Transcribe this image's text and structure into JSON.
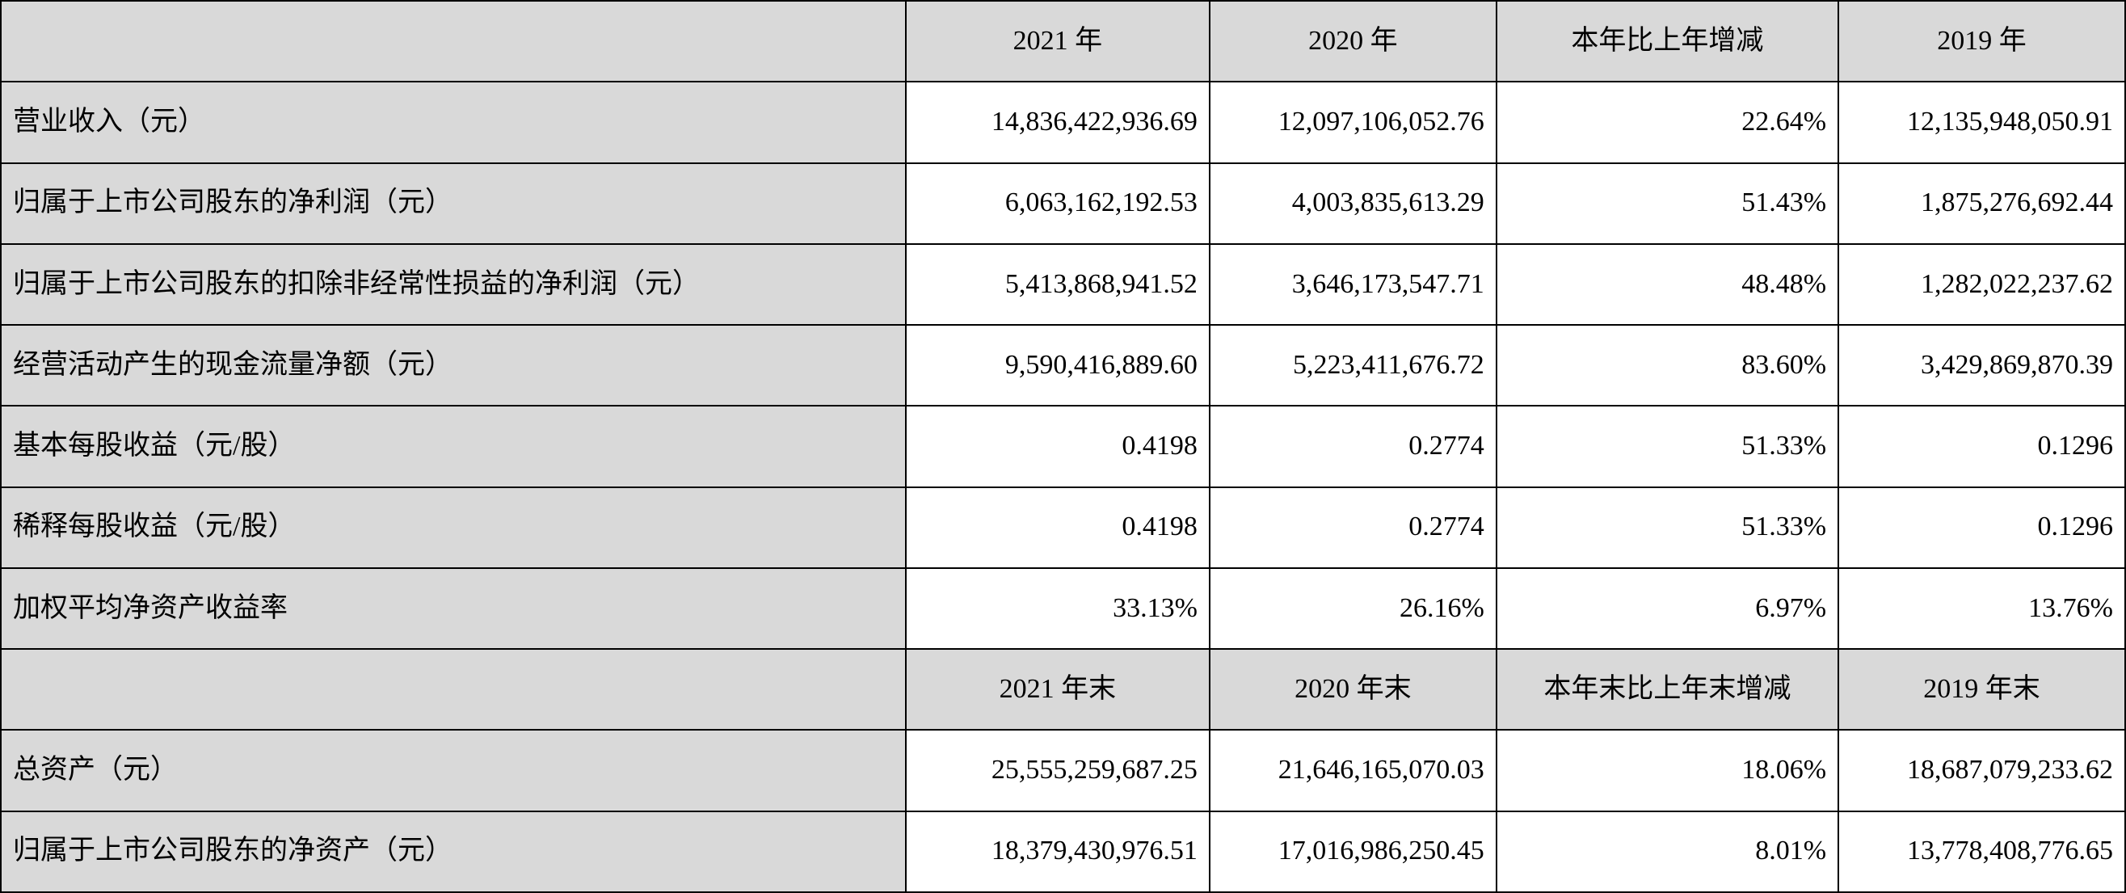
{
  "table": {
    "sections": [
      {
        "header": [
          "",
          "2021 年",
          "2020 年",
          "本年比上年增减",
          "2019 年"
        ],
        "rows": [
          {
            "label": "营业收入（元）",
            "values": [
              "14,836,422,936.69",
              "12,097,106,052.76",
              "22.64%",
              "12,135,948,050.91"
            ]
          },
          {
            "label": "归属于上市公司股东的净利润（元）",
            "values": [
              "6,063,162,192.53",
              "4,003,835,613.29",
              "51.43%",
              "1,875,276,692.44"
            ]
          },
          {
            "label": "归属于上市公司股东的扣除非经常性损益的净利润（元）",
            "values": [
              "5,413,868,941.52",
              "3,646,173,547.71",
              "48.48%",
              "1,282,022,237.62"
            ]
          },
          {
            "label": "经营活动产生的现金流量净额（元）",
            "values": [
              "9,590,416,889.60",
              "5,223,411,676.72",
              "83.60%",
              "3,429,869,870.39"
            ]
          },
          {
            "label": "基本每股收益（元/股）",
            "values": [
              "0.4198",
              "0.2774",
              "51.33%",
              "0.1296"
            ]
          },
          {
            "label": "稀释每股收益（元/股）",
            "values": [
              "0.4198",
              "0.2774",
              "51.33%",
              "0.1296"
            ]
          },
          {
            "label": "加权平均净资产收益率",
            "values": [
              "33.13%",
              "26.16%",
              "6.97%",
              "13.76%"
            ]
          }
        ]
      },
      {
        "header": [
          "",
          "2021 年末",
          "2020 年末",
          "本年末比上年末增减",
          "2019 年末"
        ],
        "rows": [
          {
            "label": "总资产（元）",
            "values": [
              "25,555,259,687.25",
              "21,646,165,070.03",
              "18.06%",
              "18,687,079,233.62"
            ]
          },
          {
            "label": "归属于上市公司股东的净资产（元）",
            "values": [
              "18,379,430,976.51",
              "17,016,986,250.45",
              "8.01%",
              "13,778,408,776.65"
            ]
          }
        ]
      }
    ]
  }
}
